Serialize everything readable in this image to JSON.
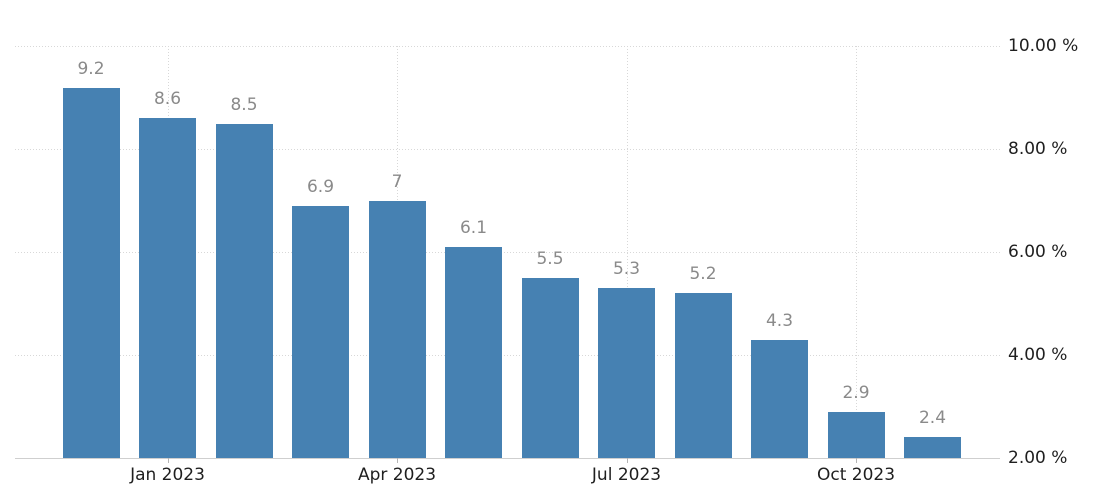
{
  "chart_data": {
    "type": "bar",
    "title": "",
    "unit": "%",
    "values": [
      9.2,
      8.6,
      8.5,
      6.9,
      7,
      6.1,
      5.5,
      5.3,
      5.2,
      4.3,
      2.9,
      2.4
    ],
    "bar_value_labels": [
      "9.2",
      "8.6",
      "8.5",
      "6.9",
      "7",
      "6.1",
      "5.5",
      "5.3",
      "5.2",
      "4.3",
      "2.9",
      "2.4"
    ],
    "x_ticks": [
      {
        "label": "Jan 2023",
        "bar_index": 1
      },
      {
        "label": "Apr 2023",
        "bar_index": 4
      },
      {
        "label": "Jul 2023",
        "bar_index": 7
      },
      {
        "label": "Oct 2023",
        "bar_index": 10
      }
    ],
    "y_ticks": [
      {
        "label": "10.00 %",
        "value": 10
      },
      {
        "label": "8.00 %",
        "value": 8
      },
      {
        "label": "6.00 %",
        "value": 6
      },
      {
        "label": "4.00 %",
        "value": 4
      },
      {
        "label": "2.00 %",
        "value": 2
      }
    ],
    "ylim": [
      2,
      10
    ],
    "baseline_value": 2,
    "grid": true,
    "legend": "none",
    "y_axis_side": "right",
    "colors": {
      "bar": "#4681b2",
      "value_label": "#8a8a8a",
      "axis_label": "#1f1f1f",
      "gridline": "#d8d8d8",
      "baseline": "#cfcfcf",
      "tick_mark": "#b5b5b5",
      "background": "#ffffff"
    }
  }
}
